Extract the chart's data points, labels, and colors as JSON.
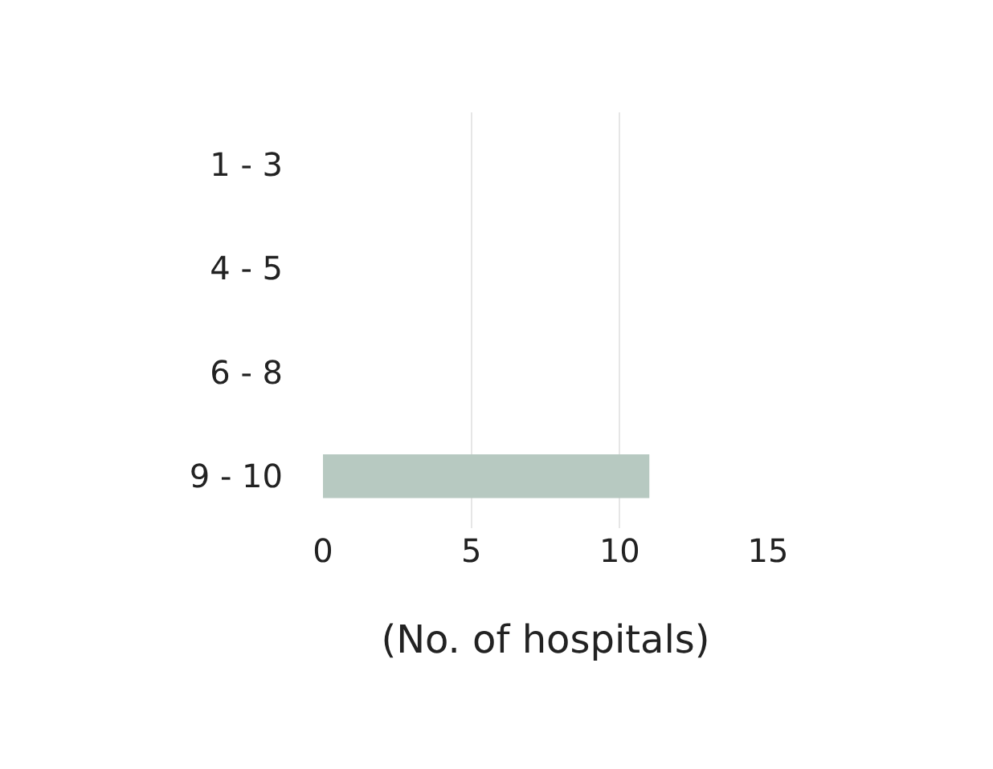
{
  "chart_data": {
    "type": "bar",
    "orientation": "horizontal",
    "xlabel": "(No. of hospitals)",
    "categories": [
      "1 - 3",
      "4 - 5",
      "6 - 8",
      "9 - 10"
    ],
    "values": [
      0,
      0,
      0,
      11
    ],
    "color": "#b7c9c1",
    "xlim": [
      0,
      15
    ],
    "xticks": [
      0,
      5,
      10,
      15
    ],
    "grid": "x",
    "legend": false
  }
}
